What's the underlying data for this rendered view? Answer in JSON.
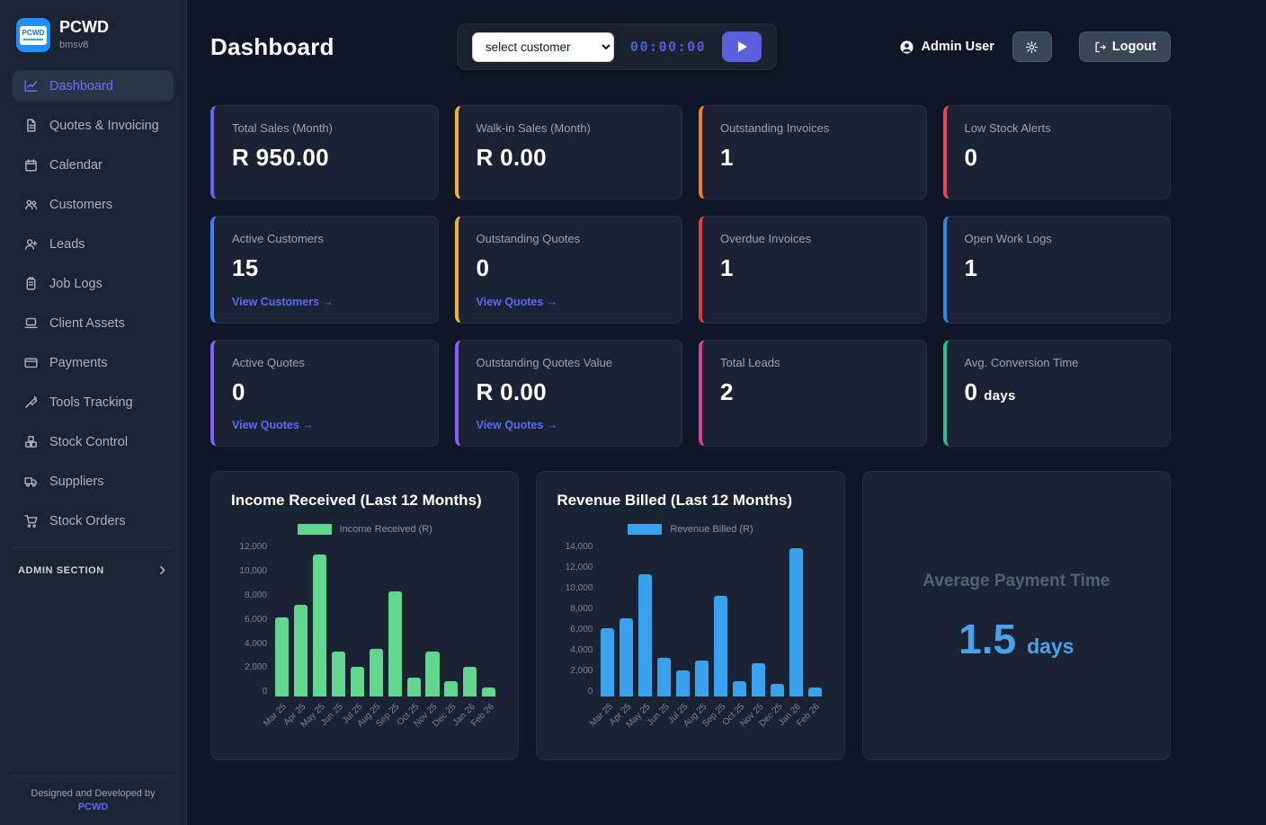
{
  "app": {
    "brand": "PCWD",
    "brand_sub": "bmsv8",
    "logo_text": "PCWD"
  },
  "sidebar": {
    "items": [
      {
        "label": "Dashboard",
        "icon": "chart-line-icon",
        "active": true
      },
      {
        "label": "Quotes & Invoicing",
        "icon": "file-invoice-icon"
      },
      {
        "label": "Calendar",
        "icon": "calendar-icon"
      },
      {
        "label": "Customers",
        "icon": "users-icon"
      },
      {
        "label": "Leads",
        "icon": "user-plus-icon"
      },
      {
        "label": "Job Logs",
        "icon": "clipboard-icon"
      },
      {
        "label": "Client Assets",
        "icon": "laptop-icon"
      },
      {
        "label": "Payments",
        "icon": "credit-card-icon"
      },
      {
        "label": "Tools Tracking",
        "icon": "wrench-icon"
      },
      {
        "label": "Stock Control",
        "icon": "boxes-icon"
      },
      {
        "label": "Suppliers",
        "icon": "truck-icon"
      },
      {
        "label": "Stock Orders",
        "icon": "cart-icon"
      }
    ],
    "admin_section_label": "ADMIN SECTION",
    "footer_text": "Designed and Developed by",
    "footer_link": "PCWD"
  },
  "header": {
    "title": "Dashboard",
    "customer_select": {
      "value": "select customer"
    },
    "timer": "00:00:00",
    "user_name": "Admin User",
    "logout_label": "Logout"
  },
  "stats": [
    {
      "label": "Total Sales (Month)",
      "value": "R 950.00",
      "accent": "#6366f1"
    },
    {
      "label": "Walk-in Sales (Month)",
      "value": "R 0.00",
      "accent": "#f0b13c"
    },
    {
      "label": "Outstanding Invoices",
      "value": "1",
      "accent": "#ed7d31"
    },
    {
      "label": "Low Stock Alerts",
      "value": "0",
      "accent": "#e8445f"
    },
    {
      "label": "Active Customers",
      "value": "15",
      "link": "View Customers →",
      "accent": "#3b82f6"
    },
    {
      "label": "Outstanding Quotes",
      "value": "0",
      "link": "View Quotes →",
      "accent": "#f0b13c"
    },
    {
      "label": "Overdue Invoices",
      "value": "1",
      "accent": "#dc3d45"
    },
    {
      "label": "Open Work Logs",
      "value": "1",
      "accent": "#2f86eb"
    },
    {
      "label": "Active Quotes",
      "value": "0",
      "link": "View Quotes →",
      "accent": "#8b5cf6"
    },
    {
      "label": "Outstanding Quotes Value",
      "value": "R 0.00",
      "link": "View Quotes →",
      "accent": "#8b5cf6"
    },
    {
      "label": "Total Leads",
      "value": "2",
      "accent": "#d6409f"
    },
    {
      "label": "Avg. Conversion Time",
      "value": "0",
      "suffix": "days",
      "accent": "#2ebf91"
    }
  ],
  "chart_data": [
    {
      "type": "bar",
      "title": "Income Received (Last 12 Months)",
      "legend": "Income Received (R)",
      "color": "#62d68f",
      "categories": [
        "Mar 25",
        "Apr 25",
        "May 25",
        "Jun 25",
        "Jul 25",
        "Aug 25",
        "Sep 25",
        "Oct 25",
        "Nov 25",
        "Dec 25",
        "Jan 26",
        "Feb 26"
      ],
      "values": [
        6150,
        7150,
        11050,
        3500,
        2350,
        3700,
        8150,
        1450,
        3500,
        1200,
        2300,
        700
      ],
      "xlabel": "",
      "ylabel": "",
      "ylim": [
        0,
        12000
      ],
      "ytick_step": 2000,
      "grid": false,
      "legend_position": "top"
    },
    {
      "type": "bar",
      "title": "Revenue Billed (Last 12 Months)",
      "legend": "Revenue Billed (R)",
      "color": "#3aa2ec",
      "categories": [
        "Mar 25",
        "Apr 25",
        "May 25",
        "Jun 25",
        "Jul 25",
        "Aug 25",
        "Sep 25",
        "Oct 25",
        "Nov 25",
        "Dec 25",
        "Jan 26",
        "Feb 26"
      ],
      "values": [
        6200,
        7100,
        11100,
        3500,
        2400,
        3250,
        9100,
        1400,
        3050,
        1150,
        13450,
        800
      ],
      "xlabel": "",
      "ylabel": "",
      "ylim": [
        0,
        14000
      ],
      "ytick_step": 2000,
      "grid": false,
      "legend_position": "top"
    }
  ],
  "payment_card": {
    "title": "Average Payment Time",
    "value": "1.5",
    "suffix": "days"
  }
}
